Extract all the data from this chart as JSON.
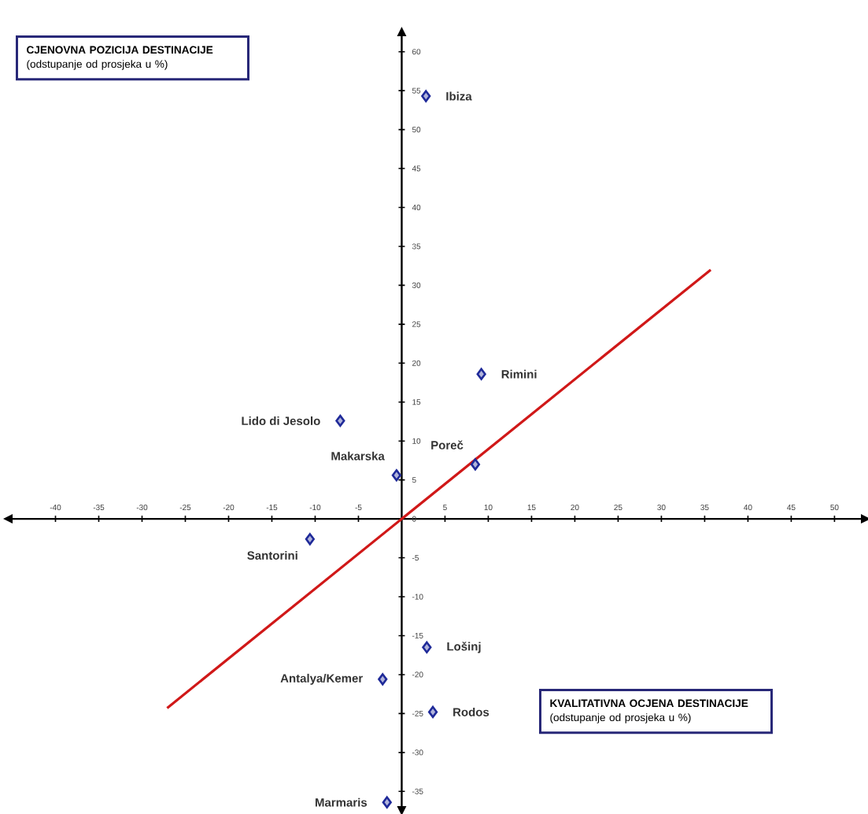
{
  "chart_data": {
    "type": "scatter",
    "xlabel": "**CJENOVNA POZICIJA DESTINACIJE** (odstupanje od prosjeka u %)",
    "ylabel": "**KVALITATIVNA OCJENA DESTINACIJE** (odstupanje od prosjeka u %)",
    "series": [
      {
        "color": "#1f2a99",
        "marker": "diamond",
        "x": [
          2.8,
          9.2,
          -7.1,
          8.5,
          -0.6,
          -10.6,
          2.9,
          -2.2,
          3.6,
          -1.7
        ],
        "values": [
          54.3,
          18.6,
          12.6,
          7.0,
          5.6,
          -2.6,
          -16.5,
          -20.6,
          -24.8,
          -36.4
        ]
      },
      {
        "type": "line",
        "color": "#d01818",
        "line_style": "solid",
        "x": [
          -27.1,
          35.7
        ],
        "values": [
          -24.3,
          32.0
        ]
      }
    ],
    "annotations": [
      {
        "text": "Ibiza",
        "x": 2.8,
        "y": 54.3
      },
      {
        "text": "Rimini",
        "x": 9.2,
        "y": 18.6
      },
      {
        "text": "Lido di Jesolo",
        "x": -7.1,
        "y": 12.6
      },
      {
        "text": "Poreč",
        "x": 8.5,
        "y": 7.0
      },
      {
        "text": "Makarska",
        "x": -0.6,
        "y": 5.6
      },
      {
        "text": "Santorini",
        "x": -10.6,
        "y": -2.6
      },
      {
        "text": "Lošinj",
        "x": 2.9,
        "y": -16.5
      },
      {
        "text": "Antalya/Kemer",
        "x": -2.2,
        "y": -20.6
      },
      {
        "text": "Rodos",
        "x": 3.6,
        "y": -24.8
      },
      {
        "text": "Marmaris",
        "x": -1.7,
        "y": -36.4
      }
    ],
    "xlim": [
      -45.5,
      53.6
    ],
    "ylim": [
      -37.5,
      62.6
    ],
    "xticks": [
      -40,
      -35,
      -30,
      -25,
      -20,
      -15,
      -10,
      -5,
      5,
      10,
      15,
      20,
      25,
      30,
      35,
      40,
      45,
      50
    ],
    "yticks": [
      -35,
      -30,
      -25,
      -20,
      -15,
      -10,
      -5,
      0,
      5,
      10,
      15,
      20,
      25,
      30,
      35,
      40,
      45,
      50,
      55,
      60
    ],
    "grid": false
  }
}
